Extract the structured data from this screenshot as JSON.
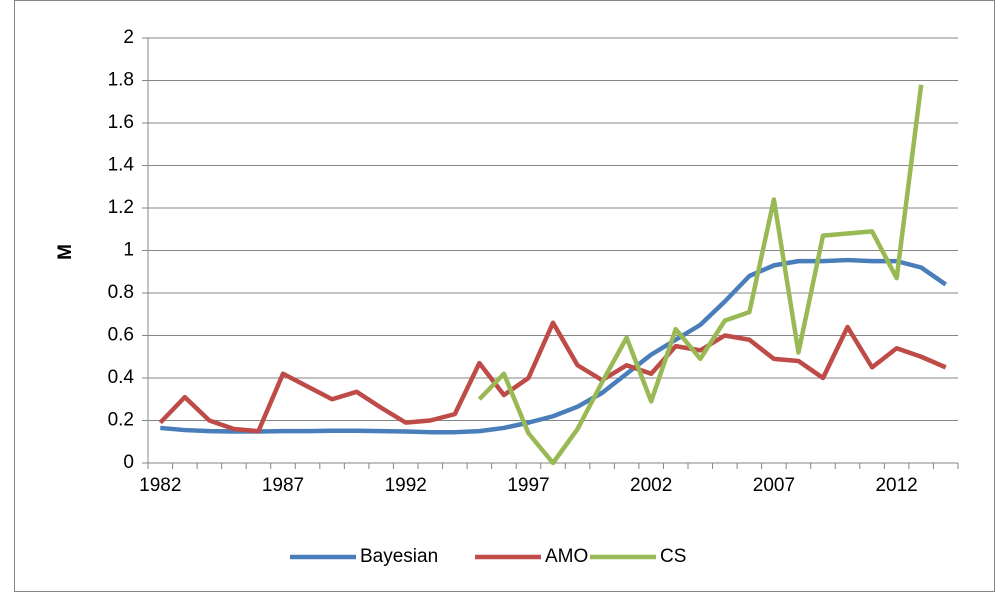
{
  "chart_data": {
    "type": "line",
    "y_label": "M",
    "categories": [
      "1982",
      null,
      null,
      null,
      null,
      "1987",
      null,
      null,
      null,
      null,
      "1992",
      null,
      null,
      null,
      null,
      "1997",
      null,
      null,
      null,
      null,
      "2002",
      null,
      null,
      null,
      null,
      "2007",
      null,
      null,
      null,
      null,
      "2012",
      null,
      null
    ],
    "series": [
      {
        "name": "Bayesian",
        "color": "#4a7ebb",
        "values": [
          0.165,
          0.155,
          0.15,
          0.148,
          0.148,
          0.15,
          0.15,
          0.152,
          0.152,
          0.15,
          0.148,
          0.145,
          0.145,
          0.15,
          0.165,
          0.19,
          0.22,
          0.265,
          0.33,
          0.42,
          0.51,
          0.58,
          0.65,
          0.76,
          0.88,
          0.93,
          0.95,
          0.95,
          0.955,
          0.95,
          0.95,
          0.92,
          0.84
        ]
      },
      {
        "name": "AMO",
        "color": "#be4b48",
        "values": [
          0.19,
          0.31,
          0.2,
          0.16,
          0.15,
          0.42,
          0.36,
          0.3,
          0.335,
          0.26,
          0.19,
          0.2,
          0.23,
          0.47,
          0.32,
          0.4,
          0.66,
          0.46,
          0.39,
          0.46,
          0.42,
          0.55,
          0.53,
          0.6,
          0.58,
          0.49,
          0.48,
          0.4,
          0.64,
          0.45,
          0.54,
          0.5,
          0.45
        ]
      },
      {
        "name": "CS",
        "color": "#98b954",
        "values": [
          null,
          null,
          null,
          null,
          null,
          null,
          null,
          null,
          null,
          null,
          null,
          null,
          null,
          0.3,
          0.42,
          0.14,
          0.0,
          0.16,
          0.38,
          0.59,
          0.29,
          0.63,
          0.49,
          0.67,
          0.71,
          1.24,
          0.52,
          1.07,
          1.08,
          1.09,
          0.87,
          1.78,
          null
        ]
      }
    ],
    "ylim": [
      0,
      2
    ],
    "yticks": [
      0,
      0.2,
      0.4,
      0.6,
      0.8,
      1,
      1.2,
      1.4,
      1.6,
      1.8,
      2
    ],
    "grid": true,
    "legend": "bottom"
  }
}
